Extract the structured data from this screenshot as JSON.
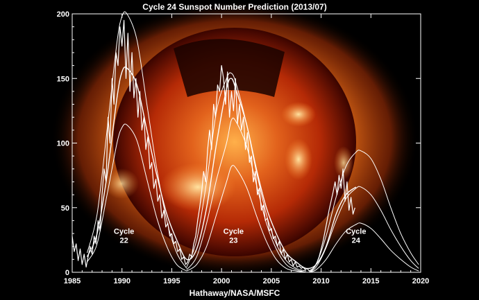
{
  "chart_data": {
    "type": "line",
    "title": "Cycle 24 Sunspot Number Prediction (2013/07)",
    "credit": "Hathaway/NASA/MSFC",
    "xlabel": "",
    "ylabel": "",
    "xlim": [
      1985,
      2020
    ],
    "ylim": [
      0,
      200
    ],
    "x_ticks": [
      1985,
      1990,
      1995,
      2000,
      2005,
      2010,
      2015,
      2020
    ],
    "y_ticks": [
      0,
      50,
      100,
      150,
      200
    ],
    "grid": false,
    "background": "solar X-ray image of the Sun",
    "colors": {
      "background": "#000000",
      "lines": "#ffffff",
      "sun_core": "#ff9a2a",
      "sun_edge": "#5a0800"
    },
    "cycle_labels": [
      {
        "line1": "Cycle",
        "line2": "22",
        "x": 1990.2,
        "y": 18
      },
      {
        "line1": "Cycle",
        "line2": "23",
        "x": 2001.2,
        "y": 18
      },
      {
        "line1": "Cycle",
        "line2": "24",
        "x": 2013.5,
        "y": 18
      }
    ],
    "series": [
      {
        "kind": "observed",
        "x": [
          1985.0,
          1985.2,
          1985.4,
          1985.6,
          1985.8,
          1986.0,
          1986.2,
          1986.4,
          1986.6,
          1986.8,
          1987.0,
          1987.2,
          1987.4,
          1987.6,
          1987.8,
          1988.0,
          1988.2,
          1988.4,
          1988.6,
          1988.8,
          1989.0,
          1989.2,
          1989.4,
          1989.6,
          1989.8,
          1990.0,
          1990.2,
          1990.4,
          1990.6,
          1990.8,
          1991.0,
          1991.2,
          1991.4,
          1991.6,
          1991.8,
          1992.0,
          1992.2,
          1992.4,
          1992.6,
          1992.8,
          1993.0,
          1993.2,
          1993.4,
          1993.6,
          1993.8,
          1994.0,
          1994.2,
          1994.4,
          1994.6,
          1994.8,
          1995.0,
          1995.2,
          1995.4,
          1995.6,
          1995.8,
          1996.0,
          1996.2,
          1996.4,
          1996.6,
          1996.8,
          1997.0,
          1997.2,
          1997.4,
          1997.6,
          1997.8,
          1998.0,
          1998.2,
          1998.4,
          1998.6,
          1998.8,
          1999.0,
          1999.2,
          1999.4,
          1999.6,
          1999.8,
          2000.0,
          2000.2,
          2000.4,
          2000.6,
          2000.8,
          2001.0,
          2001.2,
          2001.4,
          2001.6,
          2001.8,
          2002.0,
          2002.2,
          2002.4,
          2002.6,
          2002.8,
          2003.0,
          2003.2,
          2003.4,
          2003.6,
          2003.8,
          2004.0,
          2004.2,
          2004.4,
          2004.6,
          2004.8,
          2005.0,
          2005.2,
          2005.4,
          2005.6,
          2005.8,
          2006.0,
          2006.2,
          2006.4,
          2006.6,
          2006.8,
          2007.0,
          2007.2,
          2007.4,
          2007.6,
          2007.8,
          2008.0,
          2008.2,
          2008.4,
          2008.6,
          2008.8,
          2009.0,
          2009.2,
          2009.4,
          2009.6,
          2009.8,
          2010.0,
          2010.2,
          2010.4,
          2010.6,
          2010.8,
          2011.0,
          2011.2,
          2011.4,
          2011.6,
          2011.8,
          2012.0,
          2012.2,
          2012.4,
          2012.6,
          2012.8,
          2013.0,
          2013.2,
          2013.4
        ],
        "y": [
          28,
          16,
          22,
          9,
          18,
          6,
          14,
          4,
          12,
          20,
          14,
          28,
          22,
          40,
          32,
          60,
          80,
          70,
          120,
          100,
          150,
          130,
          170,
          160,
          190,
          175,
          195,
          150,
          185,
          140,
          170,
          135,
          150,
          120,
          140,
          110,
          120,
          95,
          105,
          80,
          85,
          65,
          72,
          55,
          60,
          42,
          48,
          35,
          38,
          28,
          30,
          22,
          24,
          16,
          18,
          10,
          12,
          6,
          8,
          14,
          12,
          22,
          28,
          40,
          50,
          62,
          78,
          70,
          95,
          110,
          95,
          130,
          120,
          145,
          140,
          160,
          150,
          130,
          155,
          120,
          140,
          125,
          150,
          115,
          130,
          110,
          120,
          95,
          108,
          85,
          90,
          70,
          78,
          60,
          65,
          48,
          52,
          40,
          42,
          32,
          34,
          26,
          28,
          20,
          24,
          14,
          18,
          10,
          14,
          8,
          10,
          5,
          8,
          4,
          5,
          3,
          4,
          2,
          3,
          1,
          2,
          3,
          5,
          8,
          12,
          18,
          24,
          32,
          40,
          48,
          55,
          62,
          70,
          60,
          75,
          65,
          80,
          55,
          70,
          48,
          58,
          45,
          50
        ]
      },
      {
        "kind": "smoothed",
        "x": [
          1986.5,
          1987.5,
          1988.5,
          1989.5,
          1990.0,
          1990.5,
          1991.5,
          1992.5,
          1993.5,
          1994.5,
          1995.5,
          1996.5,
          1997.5,
          1998.5,
          1999.5,
          2000.5,
          2001.0,
          2001.5,
          2002.5,
          2003.5,
          2004.5,
          2005.5,
          2006.5,
          2007.5,
          2008.5,
          2009.5,
          2010.5,
          2011.5,
          2012.5,
          2013.5
        ],
        "y": [
          12,
          30,
          75,
          135,
          155,
          158,
          145,
          110,
          75,
          45,
          25,
          10,
          18,
          50,
          100,
          142,
          150,
          140,
          115,
          80,
          50,
          30,
          15,
          8,
          3,
          6,
          20,
          45,
          60,
          66
        ]
      },
      {
        "kind": "prediction",
        "x": [
          2008.8,
          2009.5,
          2010.5,
          2011.5,
          2012.5,
          2013.5,
          2014.0,
          2015.0,
          2016.0,
          2017.0,
          2018.0,
          2019.0,
          2019.8
        ],
        "y": [
          0,
          6,
          28,
          58,
          82,
          93,
          94,
          88,
          72,
          50,
          30,
          15,
          6
        ]
      },
      {
        "kind": "prediction",
        "x": [
          2008.8,
          2009.5,
          2010.5,
          2011.5,
          2012.5,
          2013.5,
          2014.0,
          2015.0,
          2016.0,
          2017.0,
          2018.0,
          2019.0,
          2019.8
        ],
        "y": [
          0,
          4,
          19,
          40,
          57,
          65,
          66,
          60,
          48,
          33,
          20,
          9,
          3
        ]
      },
      {
        "kind": "prediction",
        "x": [
          2008.8,
          2009.5,
          2010.5,
          2011.5,
          2012.5,
          2013.5,
          2014.0,
          2015.0,
          2016.0,
          2017.0,
          2018.0,
          2019.0,
          2019.8
        ],
        "y": [
          0,
          2,
          10,
          22,
          32,
          37,
          38,
          34,
          26,
          17,
          10,
          4,
          1
        ]
      },
      {
        "kind": "envelope",
        "x": [
          1986.5,
          1987.5,
          1988.5,
          1989.5,
          1990.0,
          1990.5,
          1991.5,
          1992.5,
          1993.5,
          1994.5,
          1995.5,
          1996.5
        ],
        "y": [
          15,
          45,
          110,
          178,
          198,
          200,
          180,
          130,
          80,
          40,
          15,
          3
        ]
      },
      {
        "kind": "envelope",
        "x": [
          1986.5,
          1987.5,
          1988.5,
          1989.5,
          1990.0,
          1990.5,
          1991.5,
          1992.5,
          1993.5,
          1994.5,
          1995.5,
          1996.5
        ],
        "y": [
          8,
          22,
          60,
          100,
          112,
          114,
          102,
          72,
          42,
          20,
          6,
          1
        ]
      },
      {
        "kind": "envelope",
        "x": [
          1996.5,
          1997.5,
          1998.5,
          1999.5,
          2000.5,
          2001.0,
          2001.5,
          2002.5,
          2003.5,
          2004.5,
          2005.5,
          2006.5,
          2007.5,
          2008.5
        ],
        "y": [
          4,
          25,
          70,
          125,
          150,
          154,
          145,
          115,
          78,
          45,
          22,
          9,
          3,
          1
        ]
      },
      {
        "kind": "envelope",
        "x": [
          1996.5,
          1997.5,
          1998.5,
          1999.5,
          2000.5,
          2001.0,
          2001.5,
          2002.5,
          2003.5,
          2004.5,
          2005.5,
          2006.5,
          2007.5,
          2008.5
        ],
        "y": [
          2,
          12,
          38,
          72,
          100,
          118,
          116,
          98,
          68,
          38,
          18,
          6,
          2,
          0
        ]
      },
      {
        "kind": "envelope",
        "x": [
          1996.5,
          1997.5,
          1998.5,
          1999.5,
          2000.5,
          2001.0,
          2001.5,
          2002.5,
          2003.5,
          2004.5,
          2005.5,
          2006.5,
          2007.5,
          2008.5
        ],
        "y": [
          1,
          6,
          20,
          45,
          70,
          82,
          80,
          66,
          44,
          24,
          10,
          3,
          1,
          0
        ]
      }
    ]
  }
}
